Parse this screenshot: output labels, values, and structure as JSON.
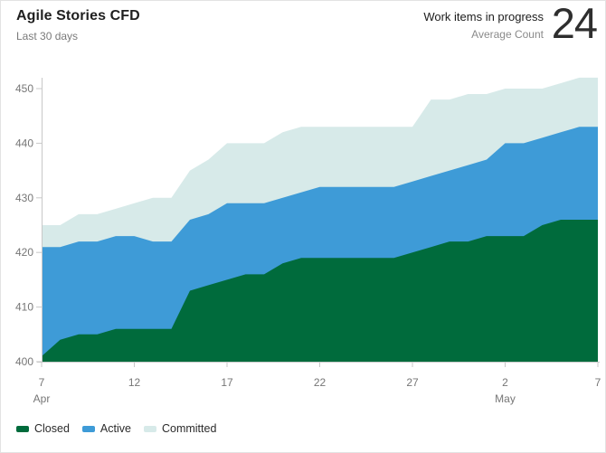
{
  "header": {
    "title": "Agile Stories CFD",
    "subtitle": "Last 30 days",
    "metric_label_line1": "Work items in progress",
    "metric_label_line2": "Average Count",
    "metric_value": "24"
  },
  "chart_data": {
    "type": "area",
    "stacked": true,
    "title": "Agile Stories CFD",
    "xlabel": "",
    "ylabel": "",
    "ylim": [
      400,
      455
    ],
    "grid": false,
    "legend_position": "bottom",
    "x": [
      "Apr 7",
      "Apr 8",
      "Apr 9",
      "Apr 10",
      "Apr 11",
      "Apr 12",
      "Apr 13",
      "Apr 14",
      "Apr 15",
      "Apr 16",
      "Apr 17",
      "Apr 18",
      "Apr 19",
      "Apr 20",
      "Apr 21",
      "Apr 22",
      "Apr 23",
      "Apr 24",
      "Apr 25",
      "Apr 26",
      "Apr 27",
      "Apr 28",
      "Apr 29",
      "Apr 30",
      "May 1",
      "May 2",
      "May 3",
      "May 4",
      "May 5",
      "May 6",
      "May 7"
    ],
    "series": [
      {
        "name": "Closed",
        "color": "#006b3c",
        "values": [
          401,
          404,
          405,
          405,
          406,
          406,
          406,
          406,
          413,
          414,
          415,
          416,
          416,
          418,
          419,
          419,
          419,
          419,
          419,
          419,
          420,
          421,
          422,
          422,
          423,
          423,
          423,
          425,
          426,
          426,
          426
        ]
      },
      {
        "name": "Active",
        "color": "#3e9bd7",
        "values": [
          421,
          421,
          422,
          422,
          423,
          423,
          422,
          422,
          426,
          427,
          429,
          429,
          429,
          430,
          431,
          432,
          432,
          432,
          432,
          432,
          433,
          434,
          435,
          436,
          437,
          440,
          440,
          441,
          442,
          443,
          443
        ]
      },
      {
        "name": "Committed",
        "color": "#d7eae9",
        "values": [
          425,
          425,
          427,
          427,
          428,
          429,
          430,
          430,
          435,
          437,
          440,
          440,
          440,
          442,
          443,
          443,
          443,
          443,
          443,
          443,
          443,
          448,
          448,
          449,
          449,
          450,
          450,
          450,
          451,
          452,
          452
        ]
      }
    ],
    "series_note": "values are cumulative counts of work items at or past each state; bands are drawn from the 400 baseline",
    "y_ticks": [
      400,
      410,
      420,
      430,
      440,
      450
    ],
    "x_tick_indices": [
      0,
      5,
      10,
      15,
      20,
      25,
      30
    ],
    "x_tick_labels": [
      "7",
      "12",
      "17",
      "22",
      "27",
      "2",
      "7"
    ],
    "month_labels": [
      {
        "text": "Apr",
        "index": 0
      },
      {
        "text": "May",
        "index": 25
      }
    ],
    "axis_color": "#c8c8c8",
    "tick_label_color": "#767676"
  }
}
